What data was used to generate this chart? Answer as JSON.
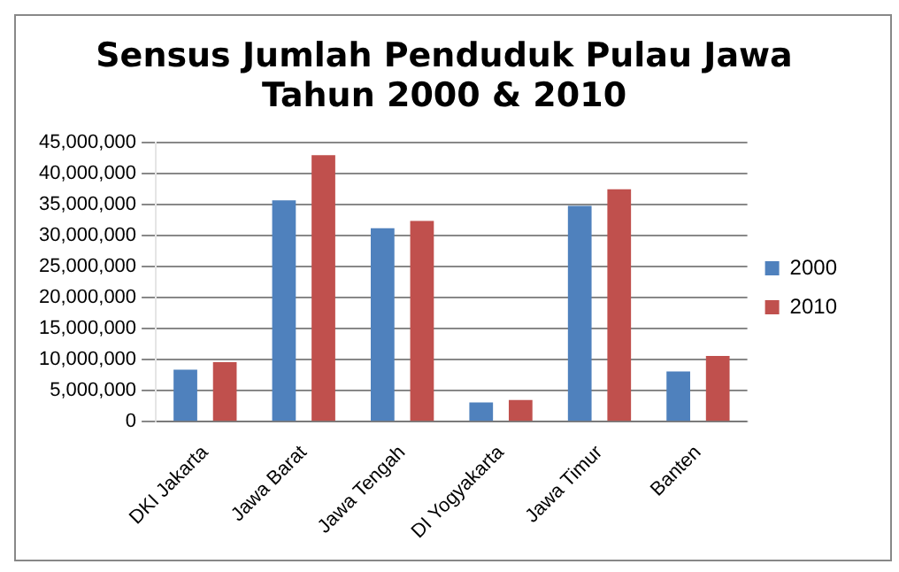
{
  "chart_data": {
    "type": "bar",
    "title": "Sensus Jumlah Penduduk Pulau Jawa\nTahun 2000 & 2010",
    "categories": [
      "DKI Jakarta",
      "Jawa Barat",
      "Jawa Tengah",
      "DI Yogyakarta",
      "Jawa Timur",
      "Banten"
    ],
    "series": [
      {
        "name": "2000",
        "color": "#4f81bd",
        "values": [
          8400000,
          35700000,
          31200000,
          3100000,
          34800000,
          8100000
        ]
      },
      {
        "name": "2010",
        "color": "#c0504d",
        "values": [
          9600000,
          43000000,
          32400000,
          3500000,
          37500000,
          10600000
        ]
      }
    ],
    "ylim": [
      0,
      45000000
    ],
    "yticks": [
      0,
      {
        "value": 5000000,
        "label": "5,000,000"
      },
      {
        "value": 10000000,
        "label": "10,000,000"
      },
      {
        "value": 15000000,
        "label": "15,000,000"
      },
      {
        "value": 20000000,
        "label": "20,000,000"
      },
      {
        "value": 25000000,
        "label": "25,000,000"
      },
      {
        "value": 30000000,
        "label": "30,000,000"
      },
      {
        "value": 35000000,
        "label": "35,000,000"
      },
      {
        "value": 40000000,
        "label": "40,000,000"
      },
      {
        "value": 45000000,
        "label": "45,000,000"
      }
    ],
    "grid": "y",
    "legend": "right"
  }
}
